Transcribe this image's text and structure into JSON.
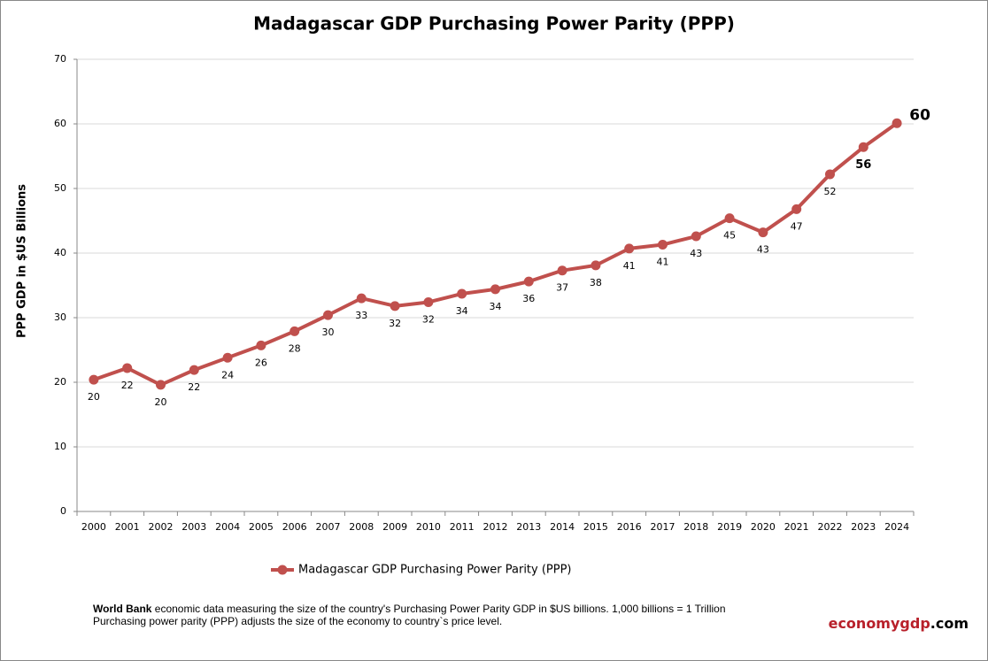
{
  "chart_data": {
    "type": "line",
    "title": "Madagascar GDP Purchasing Power Parity (PPP)",
    "y_axis_label": "PPP GDP in $US Billions",
    "categories": [
      "2000",
      "2001",
      "2002",
      "2003",
      "2004",
      "2005",
      "2006",
      "2007",
      "2008",
      "2009",
      "2010",
      "2011",
      "2012",
      "2013",
      "2014",
      "2015",
      "2016",
      "2017",
      "2018",
      "2019",
      "2020",
      "2021",
      "2022",
      "2023",
      "2024"
    ],
    "series": [
      {
        "name": "Madagascar GDP Purchasing Power Parity (PPP)",
        "color": "#c0504d",
        "values": [
          20.4,
          22.2,
          19.6,
          21.9,
          23.8,
          25.7,
          27.9,
          30.4,
          33.0,
          31.8,
          32.4,
          33.7,
          34.4,
          35.6,
          37.3,
          38.1,
          40.7,
          41.3,
          42.6,
          45.4,
          43.2,
          46.8,
          52.2,
          56.4,
          60.1
        ],
        "value_labels": [
          "20",
          "22",
          "20",
          "22",
          "24",
          "26",
          "28",
          "30",
          "33",
          "32",
          "32",
          "34",
          "34",
          "36",
          "37",
          "38",
          "41",
          "41",
          "43",
          "45",
          "43",
          "47",
          "52",
          "56",
          "60"
        ]
      }
    ],
    "ylim": [
      0,
      70
    ],
    "yticks": [
      0,
      10,
      20,
      30,
      40,
      50,
      60,
      70
    ],
    "grid": true,
    "note_source": "World Bank",
    "note_lines": [
      " economic data  measuring the size of the country's Purchasing Power Parity GDP in $US billions. 1,000 billions = 1 Trillion",
      "Purchasing power parity (PPP) adjusts the size of the economy to country`s price level."
    ],
    "watermark": [
      "economygdp",
      ".com"
    ]
  }
}
